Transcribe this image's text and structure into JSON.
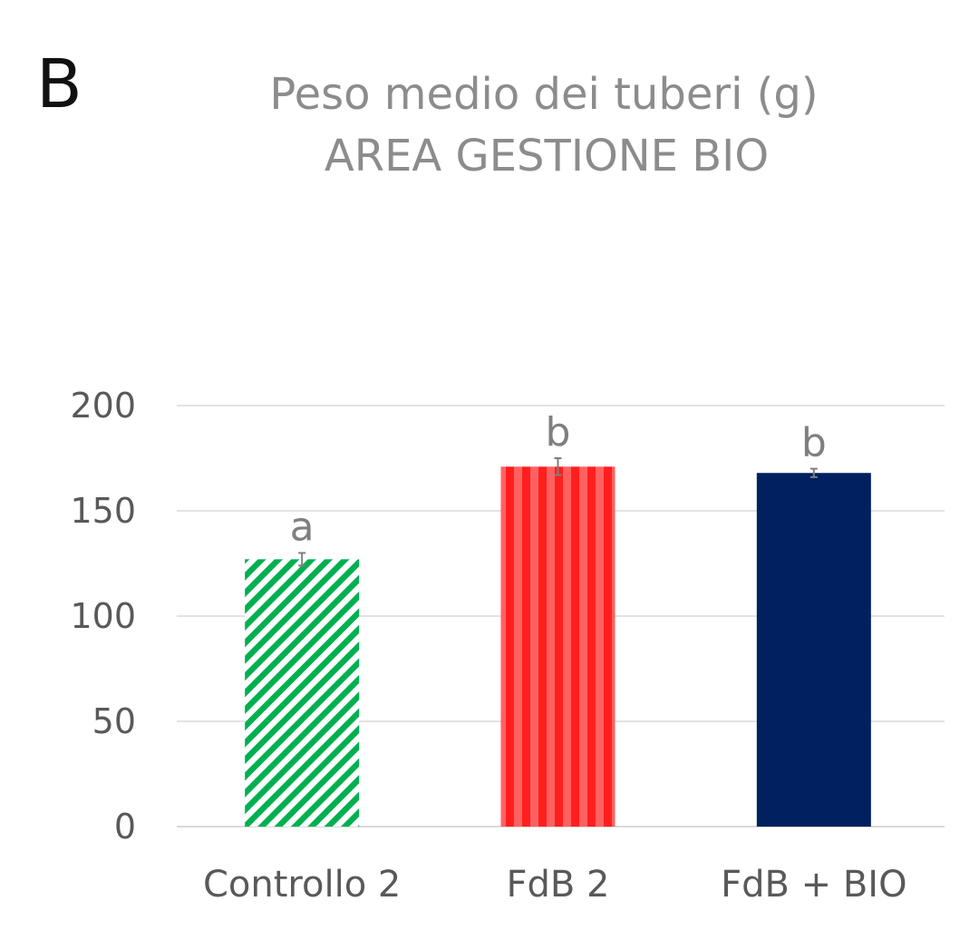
{
  "panel_label": "B",
  "chart_data": {
    "type": "bar",
    "title": "Peso medio dei tuberi (g)",
    "subtitle": "AREA GESTIONE BIO",
    "categories": [
      "Controllo 2",
      "FdB 2",
      "FdB + BIO"
    ],
    "values": [
      127,
      171,
      168
    ],
    "errors": [
      3,
      4,
      2
    ],
    "significance_letters": [
      "a",
      "b",
      "b"
    ],
    "bar_styles": [
      {
        "fill": "#00b050",
        "pattern": "diagonal-stripes"
      },
      {
        "fill": "#ff2a2a",
        "pattern": "vertical-stripes"
      },
      {
        "fill": "#002060",
        "pattern": "solid"
      }
    ],
    "ylim": [
      0,
      200
    ],
    "yticks": [
      0,
      50,
      100,
      150,
      200
    ],
    "grid": true,
    "legend": "none"
  }
}
